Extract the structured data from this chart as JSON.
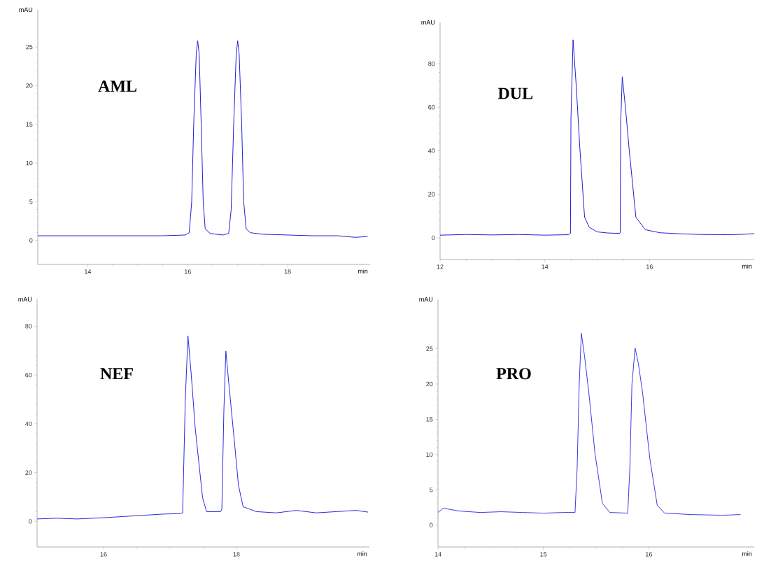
{
  "chart_data": [
    {
      "type": "line",
      "xlabel": "min",
      "ylabel": "mAU",
      "annotations": [
        "AML"
      ],
      "color": "#1f1fd6",
      "xlim": [
        13,
        19.65
      ],
      "ylim": [
        -3.1,
        29.8
      ],
      "xticks": [
        14,
        16,
        18
      ],
      "yticks": [
        0,
        5,
        10,
        15,
        20,
        25
      ],
      "x": [
        13.0,
        15.5,
        15.95,
        16.03,
        16.08,
        16.12,
        16.17,
        16.2,
        16.23,
        16.27,
        16.31,
        16.35,
        16.45,
        16.7,
        16.82,
        16.87,
        16.92,
        16.97,
        17.0,
        17.03,
        17.08,
        17.12,
        17.17,
        17.25,
        17.5,
        18.0,
        18.5,
        19.0,
        19.35,
        19.6
      ],
      "values": [
        0.6,
        0.6,
        0.7,
        1.0,
        5,
        15,
        24,
        25.8,
        24,
        15,
        5,
        1.5,
        0.9,
        0.7,
        0.9,
        4,
        15,
        24,
        25.8,
        24,
        15,
        5,
        1.5,
        1.0,
        0.8,
        0.7,
        0.6,
        0.6,
        0.4,
        0.5
      ]
    },
    {
      "type": "line",
      "xlabel": "min",
      "ylabel": "mAU",
      "annotations": [
        "DUL"
      ],
      "color": "#1f1fd6",
      "xlim": [
        12,
        18
      ],
      "ylim": [
        -10,
        99
      ],
      "xticks": [
        12,
        14,
        16
      ],
      "yticks": [
        0,
        20,
        40,
        60,
        80
      ],
      "x": [
        12.0,
        12.5,
        13.0,
        13.5,
        14.0,
        14.45,
        14.49,
        14.5,
        14.54,
        14.6,
        14.67,
        14.76,
        14.85,
        15.0,
        15.2,
        15.42,
        15.44,
        15.45,
        15.48,
        15.54,
        15.61,
        15.74,
        15.92,
        16.2,
        16.6,
        17.0,
        17.5,
        17.8,
        18.0
      ],
      "values": [
        1.2,
        1.5,
        1.3,
        1.5,
        1.2,
        1.4,
        2.0,
        55,
        91,
        70,
        41,
        9.4,
        4.8,
        2.7,
        2.2,
        2.0,
        2.2,
        53,
        74,
        60,
        41,
        9.4,
        3.7,
        2.3,
        1.8,
        1.5,
        1.4,
        1.6,
        1.9
      ]
    },
    {
      "type": "line",
      "xlabel": "min",
      "ylabel": "mAU",
      "annotations": [
        "NEF"
      ],
      "color": "#2a2ae0",
      "xlim": [
        15,
        20
      ],
      "ylim": [
        -10.5,
        91
      ],
      "xticks": [
        16,
        18
      ],
      "yticks": [
        0,
        20,
        40,
        60,
        80
      ],
      "x": [
        15.0,
        15.3,
        15.6,
        16.0,
        16.3,
        16.6,
        16.9,
        17.15,
        17.19,
        17.23,
        17.27,
        17.32,
        17.38,
        17.49,
        17.55,
        17.76,
        17.78,
        17.81,
        17.84,
        17.89,
        17.95,
        18.03,
        18.1,
        18.3,
        18.6,
        18.9,
        19.2,
        19.5,
        19.8,
        19.98
      ],
      "values": [
        1.0,
        1.3,
        1.0,
        1.5,
        2.0,
        2.5,
        3.0,
        3.2,
        3.5,
        50,
        76.1,
        60,
        38,
        9.7,
        4,
        4,
        5,
        45,
        69.8,
        55,
        38,
        14.8,
        6,
        4,
        3.5,
        4.5,
        3.5,
        4.0,
        4.5,
        3.8
      ]
    },
    {
      "type": "line",
      "xlabel": "min",
      "ylabel": "mAU",
      "annotations": [
        "PRO"
      ],
      "color": "#3a3ae6",
      "xlim": [
        14,
        17
      ],
      "ylim": [
        -3.1,
        32
      ],
      "xticks": [
        14,
        15,
        16
      ],
      "yticks": [
        0,
        5,
        10,
        15,
        20,
        25
      ],
      "x": [
        14.0,
        14.05,
        14.2,
        14.4,
        14.6,
        14.8,
        15.0,
        15.2,
        15.3,
        15.32,
        15.34,
        15.36,
        15.39,
        15.43,
        15.49,
        15.56,
        15.63,
        15.8,
        15.82,
        15.84,
        15.87,
        15.9,
        15.94,
        16.01,
        16.08,
        16.15,
        16.4,
        16.7,
        16.87
      ],
      "values": [
        1.8,
        2.4,
        2.0,
        1.8,
        1.9,
        1.8,
        1.7,
        1.8,
        1.8,
        8,
        20,
        27.2,
        24,
        18.9,
        10.1,
        3.1,
        1.8,
        1.7,
        8,
        20,
        25.1,
        23,
        18.9,
        9.4,
        2.8,
        1.7,
        1.5,
        1.4,
        1.5
      ]
    }
  ]
}
